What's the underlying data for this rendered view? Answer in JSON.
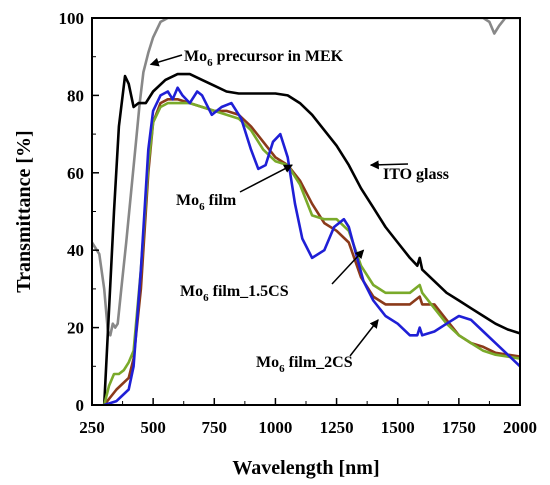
{
  "chart_data": {
    "type": "line",
    "xlabel": "Wavelength [nm]",
    "ylabel": "Transmittance [%]",
    "xlim": [
      250,
      2000
    ],
    "ylim": [
      0,
      100
    ],
    "grid": false,
    "x_ticks": [
      "250",
      "500",
      "750",
      "1000",
      "1250",
      "1500",
      "1750",
      "2000"
    ],
    "y_ticks": [
      "0",
      "20",
      "40",
      "60",
      "80",
      "100"
    ],
    "series": [
      {
        "name": "Mo6 precursor in MEK",
        "color": "#888888",
        "points": [
          [
            250,
            42
          ],
          [
            280,
            39
          ],
          [
            300,
            30
          ],
          [
            315,
            19
          ],
          [
            325,
            18
          ],
          [
            335,
            21
          ],
          [
            345,
            20
          ],
          [
            355,
            21
          ],
          [
            370,
            30
          ],
          [
            390,
            42
          ],
          [
            410,
            55
          ],
          [
            430,
            68
          ],
          [
            445,
            78
          ],
          [
            460,
            86
          ],
          [
            480,
            91
          ],
          [
            500,
            95
          ],
          [
            530,
            99
          ],
          [
            560,
            100
          ],
          [
            1850,
            100
          ],
          [
            1875,
            99
          ],
          [
            1895,
            96
          ],
          [
            1915,
            98
          ],
          [
            1940,
            100
          ],
          [
            2000,
            100
          ]
        ]
      },
      {
        "name": "ITO glass",
        "color": "#000000",
        "points": [
          [
            300,
            0
          ],
          [
            320,
            25
          ],
          [
            340,
            50
          ],
          [
            360,
            72
          ],
          [
            385,
            85
          ],
          [
            400,
            83
          ],
          [
            420,
            77
          ],
          [
            440,
            78
          ],
          [
            470,
            78
          ],
          [
            500,
            81
          ],
          [
            550,
            84
          ],
          [
            600,
            85.5
          ],
          [
            650,
            85.5
          ],
          [
            700,
            84
          ],
          [
            750,
            82.5
          ],
          [
            800,
            81
          ],
          [
            850,
            80.5
          ],
          [
            900,
            80.5
          ],
          [
            950,
            80.5
          ],
          [
            1000,
            80.5
          ],
          [
            1050,
            80
          ],
          [
            1100,
            78
          ],
          [
            1150,
            75
          ],
          [
            1200,
            71
          ],
          [
            1250,
            67
          ],
          [
            1300,
            62
          ],
          [
            1350,
            56
          ],
          [
            1400,
            51
          ],
          [
            1450,
            46
          ],
          [
            1500,
            42
          ],
          [
            1550,
            38
          ],
          [
            1580,
            36
          ],
          [
            1590,
            38
          ],
          [
            1600,
            35
          ],
          [
            1650,
            32
          ],
          [
            1700,
            29
          ],
          [
            1750,
            27
          ],
          [
            1800,
            25
          ],
          [
            1850,
            23
          ],
          [
            1900,
            21
          ],
          [
            1950,
            19.5
          ],
          [
            2000,
            18.5
          ]
        ]
      },
      {
        "name": "Mo6 film",
        "color": "#8b3a1a",
        "points": [
          [
            300,
            0
          ],
          [
            350,
            4
          ],
          [
            400,
            7
          ],
          [
            420,
            12
          ],
          [
            450,
            30
          ],
          [
            480,
            60
          ],
          [
            500,
            73
          ],
          [
            530,
            78
          ],
          [
            560,
            79
          ],
          [
            600,
            79
          ],
          [
            650,
            78
          ],
          [
            700,
            77
          ],
          [
            750,
            76
          ],
          [
            800,
            76
          ],
          [
            850,
            75
          ],
          [
            900,
            72
          ],
          [
            950,
            68
          ],
          [
            1000,
            64
          ],
          [
            1050,
            62
          ],
          [
            1100,
            58
          ],
          [
            1150,
            52
          ],
          [
            1200,
            47
          ],
          [
            1250,
            45
          ],
          [
            1300,
            42
          ],
          [
            1350,
            33
          ],
          [
            1400,
            28
          ],
          [
            1450,
            26
          ],
          [
            1500,
            26
          ],
          [
            1550,
            26
          ],
          [
            1590,
            28
          ],
          [
            1600,
            26
          ],
          [
            1650,
            26
          ],
          [
            1700,
            22
          ],
          [
            1750,
            18
          ],
          [
            1800,
            16
          ],
          [
            1850,
            15
          ],
          [
            1900,
            13.5
          ],
          [
            2000,
            12.5
          ]
        ]
      },
      {
        "name": "Mo6 film_1.5CS",
        "color": "#7aaa2a",
        "points": [
          [
            300,
            0
          ],
          [
            320,
            5
          ],
          [
            340,
            8
          ],
          [
            360,
            8
          ],
          [
            380,
            9
          ],
          [
            400,
            11
          ],
          [
            420,
            14
          ],
          [
            450,
            35
          ],
          [
            480,
            62
          ],
          [
            500,
            73
          ],
          [
            530,
            77
          ],
          [
            560,
            78
          ],
          [
            600,
            78
          ],
          [
            650,
            78
          ],
          [
            700,
            77
          ],
          [
            750,
            76
          ],
          [
            800,
            75
          ],
          [
            850,
            74
          ],
          [
            900,
            71
          ],
          [
            950,
            66
          ],
          [
            1000,
            63
          ],
          [
            1050,
            62
          ],
          [
            1100,
            57
          ],
          [
            1150,
            49
          ],
          [
            1200,
            48
          ],
          [
            1250,
            48
          ],
          [
            1300,
            45
          ],
          [
            1350,
            36
          ],
          [
            1400,
            31
          ],
          [
            1450,
            29
          ],
          [
            1500,
            29
          ],
          [
            1550,
            29
          ],
          [
            1590,
            31
          ],
          [
            1600,
            29
          ],
          [
            1650,
            25
          ],
          [
            1700,
            21
          ],
          [
            1750,
            18
          ],
          [
            1800,
            16
          ],
          [
            1850,
            14
          ],
          [
            1900,
            13
          ],
          [
            2000,
            12
          ]
        ]
      },
      {
        "name": "Mo6 film_2CS",
        "color": "#1f1fd6",
        "points": [
          [
            300,
            0
          ],
          [
            350,
            1
          ],
          [
            400,
            4
          ],
          [
            420,
            10
          ],
          [
            450,
            35
          ],
          [
            480,
            66
          ],
          [
            500,
            76
          ],
          [
            530,
            80
          ],
          [
            560,
            81
          ],
          [
            580,
            79
          ],
          [
            600,
            82
          ],
          [
            620,
            80
          ],
          [
            650,
            78
          ],
          [
            680,
            81
          ],
          [
            700,
            80
          ],
          [
            740,
            75
          ],
          [
            780,
            77
          ],
          [
            820,
            78
          ],
          [
            860,
            74
          ],
          [
            900,
            66
          ],
          [
            930,
            61
          ],
          [
            960,
            62
          ],
          [
            990,
            68
          ],
          [
            1020,
            70
          ],
          [
            1050,
            64
          ],
          [
            1080,
            52
          ],
          [
            1110,
            43
          ],
          [
            1150,
            38
          ],
          [
            1200,
            40
          ],
          [
            1240,
            46
          ],
          [
            1280,
            48
          ],
          [
            1300,
            46
          ],
          [
            1330,
            39
          ],
          [
            1360,
            32
          ],
          [
            1400,
            27
          ],
          [
            1450,
            23
          ],
          [
            1500,
            21
          ],
          [
            1550,
            18
          ],
          [
            1580,
            18
          ],
          [
            1590,
            20
          ],
          [
            1600,
            18
          ],
          [
            1650,
            19
          ],
          [
            1700,
            21
          ],
          [
            1750,
            23
          ],
          [
            1800,
            22
          ],
          [
            1850,
            19
          ],
          [
            1900,
            16
          ],
          [
            1950,
            13
          ],
          [
            2000,
            10
          ]
        ]
      }
    ],
    "annotations": [
      {
        "id": "ann-precursor",
        "pre": "Mo",
        "sub": "6",
        "post": " precursor in MEK",
        "ax": 490,
        "ay": 88
      },
      {
        "id": "ann-ito",
        "pre": "",
        "sub": "",
        "post": "ITO glass",
        "ax": 1390,
        "ay": 62
      },
      {
        "id": "ann-film",
        "pre": "Mo",
        "sub": "6",
        "post": " film",
        "ax": 1068,
        "ay": 62
      },
      {
        "id": "ann-film15",
        "pre": "Mo",
        "sub": "6",
        "post": " film_1.5CS",
        "ax": 1360,
        "ay": 40
      },
      {
        "id": "ann-film2",
        "pre": "Mo",
        "sub": "6",
        "post": " film_2CS",
        "ax": 1420,
        "ay": 22
      }
    ]
  }
}
